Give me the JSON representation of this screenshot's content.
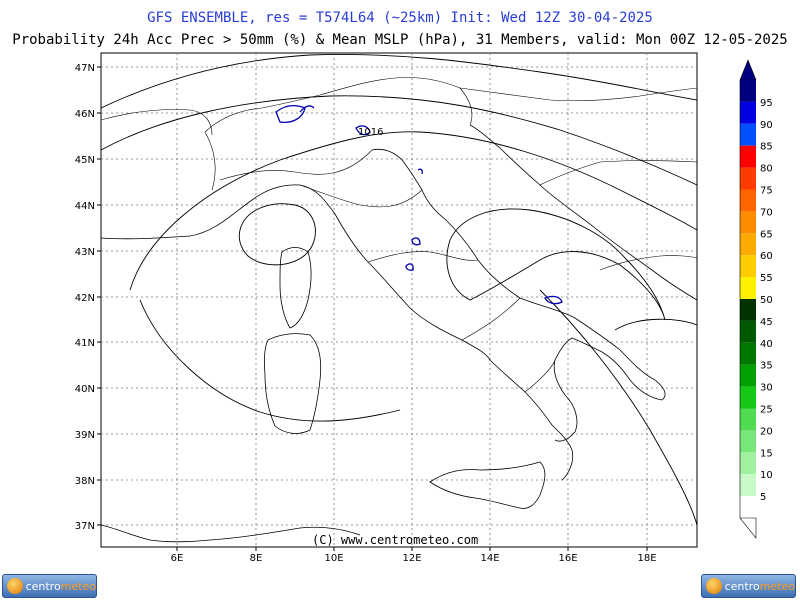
{
  "header": {
    "title": "GFS ENSEMBLE, res = T574L64 (~25km)   Init: Wed 12Z 30-04-2025",
    "subtitle": "Probability 24h Acc Prec > 50mm (%) & Mean MSLP (hPa), 31 Members, valid: Mon 00Z 12-05-2025"
  },
  "map": {
    "lat_labels": [
      "47N",
      "46N",
      "45N",
      "44N",
      "43N",
      "42N",
      "41N",
      "40N",
      "39N",
      "38N",
      "37N"
    ],
    "lon_labels": [
      "6E",
      "8E",
      "10E",
      "12E",
      "14E",
      "16E",
      "18E"
    ],
    "isobar_label": "1016",
    "copyright": "(C) www.centrometeo.com"
  },
  "colorbar": {
    "labels": [
      "95",
      "90",
      "85",
      "80",
      "75",
      "70",
      "65",
      "60",
      "55",
      "50",
      "45",
      "40",
      "35",
      "30",
      "25",
      "20",
      "15",
      "10",
      "5"
    ],
    "colors": [
      "#000080",
      "#0000e0",
      "#0050ff",
      "#ff0000",
      "#ff3c00",
      "#ff6400",
      "#ff8c00",
      "#ffaa00",
      "#ffcc00",
      "#fff000",
      "#003300",
      "#005a00",
      "#007800",
      "#00a000",
      "#14c814",
      "#50dc50",
      "#78e678",
      "#a0f0a0",
      "#c8fac8",
      "#ffffff"
    ],
    "top_color": "#000080"
  },
  "logos": {
    "left": {
      "text_a": "centro",
      "text_b": "meteo"
    },
    "right": {
      "text_a": "centro",
      "text_b": "meteo"
    }
  }
}
